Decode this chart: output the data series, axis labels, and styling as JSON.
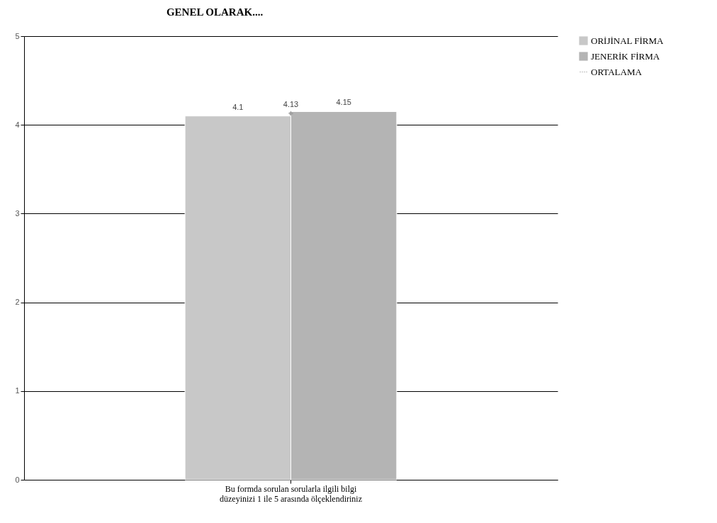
{
  "chart_data": {
    "type": "bar",
    "title": "GENEL OLARAK....",
    "categories": [
      "Bu formda sorulan sorularla ilgili bilgi düzeyinizi 1 ile 5 arasında ölçeklendiriniz"
    ],
    "series": [
      {
        "name": "ORİJİNAL FİRMA",
        "color": "#c8c8c8",
        "values": [
          4.1
        ]
      },
      {
        "name": "JENERİK FİRMA",
        "color": "#b4b4b4",
        "values": [
          4.15
        ]
      },
      {
        "name": "ORTALAMA",
        "type": "line",
        "color": "#a0a0a0",
        "line_style": "dotted",
        "values": [
          4.13
        ]
      }
    ],
    "ylim": [
      0,
      5
    ],
    "yticks": [
      0,
      1,
      2,
      3,
      4,
      5
    ],
    "grid": "y",
    "legend": "right",
    "data_labels": true,
    "marker": "circle"
  }
}
